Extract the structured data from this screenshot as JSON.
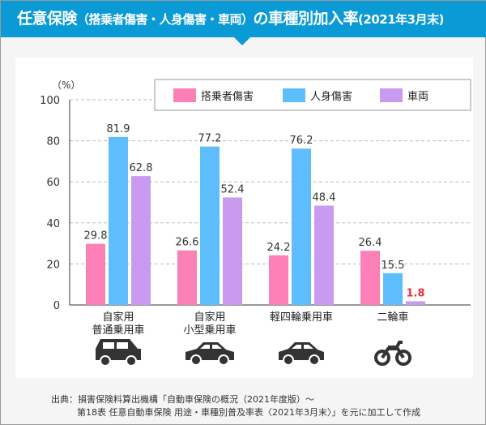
{
  "title": {
    "main": "任意保険",
    "paren": "（搭乗者傷害・人身傷害・車両）",
    "rest": "の車種別加入率",
    "date": "(2021年3月末)"
  },
  "chart_data": {
    "type": "bar",
    "ylabel": "（%）",
    "ylim": [
      0,
      100
    ],
    "yticks": [
      0,
      20,
      40,
      60,
      80,
      100
    ],
    "grid": true,
    "legend_placement": "top-right",
    "categories": [
      [
        "自家用",
        "普通乗用車"
      ],
      [
        "自家用",
        "小型乗用車"
      ],
      [
        "軽四輪乗用車"
      ],
      [
        "二輪車"
      ]
    ],
    "category_icons": [
      "suv-icon",
      "sedan-icon",
      "kei-car-icon",
      "motorcycle-icon"
    ],
    "series": [
      {
        "name": "搭乗者傷害",
        "color": "#fc7fb5",
        "values": [
          29.8,
          26.6,
          24.2,
          26.4
        ]
      },
      {
        "name": "人身傷害",
        "color": "#5ebdfc",
        "values": [
          81.9,
          77.2,
          76.2,
          15.5
        ]
      },
      {
        "name": "車両",
        "color": "#c89af0",
        "values": [
          62.8,
          52.4,
          48.4,
          1.8
        ]
      }
    ],
    "highlight_color": "#e8323c"
  },
  "source": {
    "line1": "出典：損害保険料算出機構「自動車保険の概況（2021年度版）〜",
    "line2": "第18表 任意自動車保険 用途・車種別普及率表〈2021年3月末〉」を元に加工して作成"
  }
}
